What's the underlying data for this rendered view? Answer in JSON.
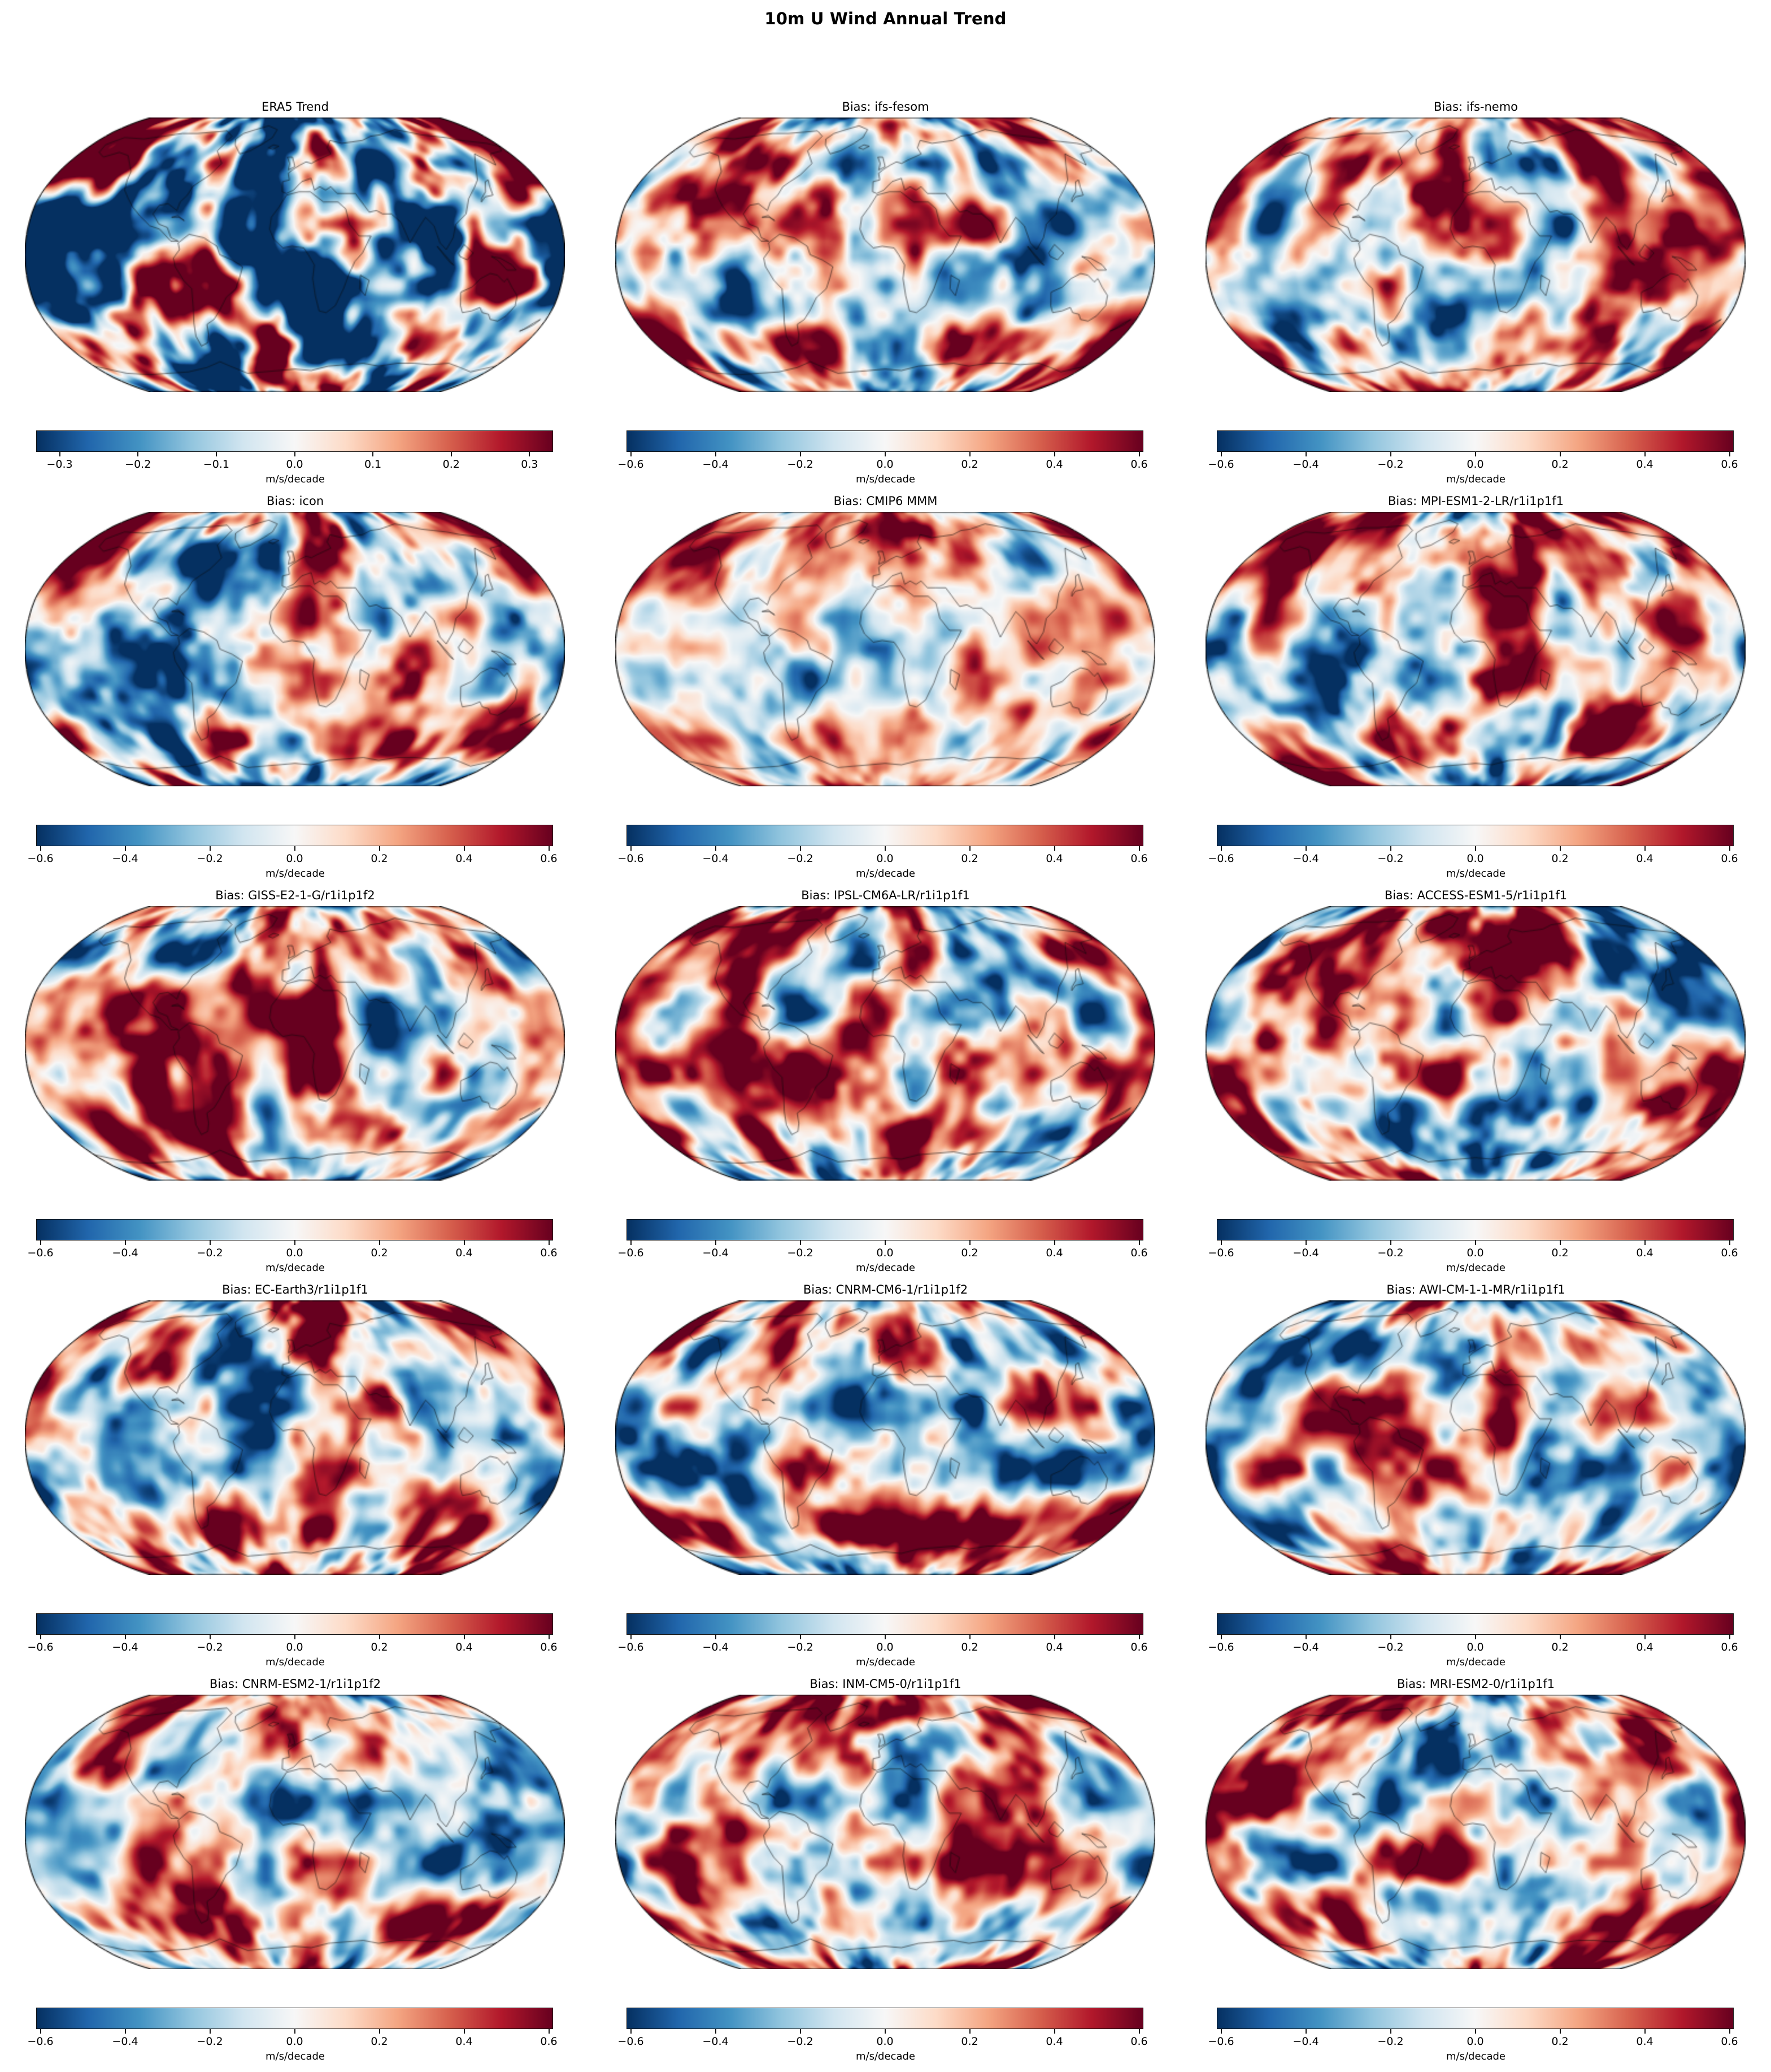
{
  "figure_title": "10m U Wind Annual Trend",
  "colorbar_unit": "m/s/decade",
  "panels": [
    {
      "title": "ERA5 Trend",
      "colorbar_tick_labels": [
        "−0.3",
        "−0.2",
        "−0.1",
        "0.0",
        "0.1",
        "0.2",
        "0.3"
      ]
    },
    {
      "title": "Bias: ifs-fesom",
      "colorbar_tick_labels": [
        "−0.6",
        "−0.4",
        "−0.2",
        "0.0",
        "0.2",
        "0.4",
        "0.6"
      ]
    },
    {
      "title": "Bias: ifs-nemo",
      "colorbar_tick_labels": [
        "−0.6",
        "−0.4",
        "−0.2",
        "0.0",
        "0.2",
        "0.4",
        "0.6"
      ]
    },
    {
      "title": "Bias: icon",
      "colorbar_tick_labels": [
        "−0.6",
        "−0.4",
        "−0.2",
        "0.0",
        "0.2",
        "0.4",
        "0.6"
      ]
    },
    {
      "title": "Bias: CMIP6 MMM",
      "colorbar_tick_labels": [
        "−0.6",
        "−0.4",
        "−0.2",
        "0.0",
        "0.2",
        "0.4",
        "0.6"
      ]
    },
    {
      "title": "Bias: MPI-ESM1-2-LR/r1i1p1f1",
      "colorbar_tick_labels": [
        "−0.6",
        "−0.4",
        "−0.2",
        "0.0",
        "0.2",
        "0.4",
        "0.6"
      ]
    },
    {
      "title": "Bias: GISS-E2-1-G/r1i1p1f2",
      "colorbar_tick_labels": [
        "−0.6",
        "−0.4",
        "−0.2",
        "0.0",
        "0.2",
        "0.4",
        "0.6"
      ]
    },
    {
      "title": "Bias: IPSL-CM6A-LR/r1i1p1f1",
      "colorbar_tick_labels": [
        "−0.6",
        "−0.4",
        "−0.2",
        "0.0",
        "0.2",
        "0.4",
        "0.6"
      ]
    },
    {
      "title": "Bias: ACCESS-ESM1-5/r1i1p1f1",
      "colorbar_tick_labels": [
        "−0.6",
        "−0.4",
        "−0.2",
        "0.0",
        "0.2",
        "0.4",
        "0.6"
      ]
    },
    {
      "title": "Bias: EC-Earth3/r1i1p1f1",
      "colorbar_tick_labels": [
        "−0.6",
        "−0.4",
        "−0.2",
        "0.0",
        "0.2",
        "0.4",
        "0.6"
      ]
    },
    {
      "title": "Bias: CNRM-CM6-1/r1i1p1f2",
      "colorbar_tick_labels": [
        "−0.6",
        "−0.4",
        "−0.2",
        "0.0",
        "0.2",
        "0.4",
        "0.6"
      ]
    },
    {
      "title": "Bias: AWI-CM-1-1-MR/r1i1p1f1",
      "colorbar_tick_labels": [
        "−0.6",
        "−0.4",
        "−0.2",
        "0.0",
        "0.2",
        "0.4",
        "0.6"
      ]
    },
    {
      "title": "Bias: CNRM-ESM2-1/r1i1p1f2",
      "colorbar_tick_labels": [
        "−0.6",
        "−0.4",
        "−0.2",
        "0.0",
        "0.2",
        "0.4",
        "0.6"
      ]
    },
    {
      "title": "Bias: INM-CM5-0/r1i1p1f1",
      "colorbar_tick_labels": [
        "−0.6",
        "−0.4",
        "−0.2",
        "0.0",
        "0.2",
        "0.4",
        "0.6"
      ]
    },
    {
      "title": "Bias: MRI-ESM2-0/r1i1p1f1",
      "colorbar_tick_labels": [
        "−0.6",
        "−0.4",
        "−0.2",
        "0.0",
        "0.2",
        "0.4",
        "0.6"
      ]
    }
  ],
  "chart_data": {
    "type": "heatmap",
    "title": "10m U Wind Annual Trend",
    "projection": "Robinson",
    "colormap": "RdBu_r",
    "colormap_stops": [
      "#053061",
      "#2166ac",
      "#4393c3",
      "#92c5de",
      "#d1e5f0",
      "#f7f7f7",
      "#fddbc7",
      "#f4a582",
      "#d6604d",
      "#b2182b",
      "#67001f"
    ],
    "colorbar_label": "m/s/decade",
    "grid": "off",
    "layout": {
      "rows": 5,
      "cols": 3
    },
    "panels": [
      {
        "title": "ERA5 Trend",
        "colorbar_ticks": [
          -0.3,
          -0.2,
          -0.1,
          0.0,
          0.1,
          0.2,
          0.3
        ],
        "colorbar_range": [
          -0.33,
          0.33
        ]
      },
      {
        "title": "Bias: ifs-fesom",
        "colorbar_ticks": [
          -0.6,
          -0.4,
          -0.2,
          0.0,
          0.2,
          0.4,
          0.6
        ],
        "colorbar_range": [
          -0.61,
          0.61
        ]
      },
      {
        "title": "Bias: ifs-nemo",
        "colorbar_ticks": [
          -0.6,
          -0.4,
          -0.2,
          0.0,
          0.2,
          0.4,
          0.6
        ],
        "colorbar_range": [
          -0.61,
          0.61
        ]
      },
      {
        "title": "Bias: icon",
        "colorbar_ticks": [
          -0.6,
          -0.4,
          -0.2,
          0.0,
          0.2,
          0.4,
          0.6
        ],
        "colorbar_range": [
          -0.61,
          0.61
        ]
      },
      {
        "title": "Bias: CMIP6 MMM",
        "colorbar_ticks": [
          -0.6,
          -0.4,
          -0.2,
          0.0,
          0.2,
          0.4,
          0.6
        ],
        "colorbar_range": [
          -0.61,
          0.61
        ]
      },
      {
        "title": "Bias: MPI-ESM1-2-LR/r1i1p1f1",
        "colorbar_ticks": [
          -0.6,
          -0.4,
          -0.2,
          0.0,
          0.2,
          0.4,
          0.6
        ],
        "colorbar_range": [
          -0.61,
          0.61
        ]
      },
      {
        "title": "Bias: GISS-E2-1-G/r1i1p1f2",
        "colorbar_ticks": [
          -0.6,
          -0.4,
          -0.2,
          0.0,
          0.2,
          0.4,
          0.6
        ],
        "colorbar_range": [
          -0.61,
          0.61
        ]
      },
      {
        "title": "Bias: IPSL-CM6A-LR/r1i1p1f1",
        "colorbar_ticks": [
          -0.6,
          -0.4,
          -0.2,
          0.0,
          0.2,
          0.4,
          0.6
        ],
        "colorbar_range": [
          -0.61,
          0.61
        ]
      },
      {
        "title": "Bias: ACCESS-ESM1-5/r1i1p1f1",
        "colorbar_ticks": [
          -0.6,
          -0.4,
          -0.2,
          0.0,
          0.2,
          0.4,
          0.6
        ],
        "colorbar_range": [
          -0.61,
          0.61
        ]
      },
      {
        "title": "Bias: EC-Earth3/r1i1p1f1",
        "colorbar_ticks": [
          -0.6,
          -0.4,
          -0.2,
          0.0,
          0.2,
          0.4,
          0.6
        ],
        "colorbar_range": [
          -0.61,
          0.61
        ]
      },
      {
        "title": "Bias: CNRM-CM6-1/r1i1p1f2",
        "colorbar_ticks": [
          -0.6,
          -0.4,
          -0.2,
          0.0,
          0.2,
          0.4,
          0.6
        ],
        "colorbar_range": [
          -0.61,
          0.61
        ]
      },
      {
        "title": "Bias: AWI-CM-1-1-MR/r1i1p1f1",
        "colorbar_ticks": [
          -0.6,
          -0.4,
          -0.2,
          0.0,
          0.2,
          0.4,
          0.6
        ],
        "colorbar_range": [
          -0.61,
          0.61
        ]
      },
      {
        "title": "Bias: CNRM-ESM2-1/r1i1p1f2",
        "colorbar_ticks": [
          -0.6,
          -0.4,
          -0.2,
          0.0,
          0.2,
          0.4,
          0.6
        ],
        "colorbar_range": [
          -0.61,
          0.61
        ]
      },
      {
        "title": "Bias: INM-CM5-0/r1i1p1f1",
        "colorbar_ticks": [
          -0.6,
          -0.4,
          -0.2,
          0.0,
          0.2,
          0.4,
          0.6
        ],
        "colorbar_range": [
          -0.61,
          0.61
        ]
      },
      {
        "title": "Bias: MRI-ESM2-0/r1i1p1f1",
        "colorbar_ticks": [
          -0.6,
          -0.4,
          -0.2,
          0.0,
          0.2,
          0.4,
          0.6
        ],
        "colorbar_range": [
          -0.61,
          0.61
        ]
      }
    ]
  }
}
